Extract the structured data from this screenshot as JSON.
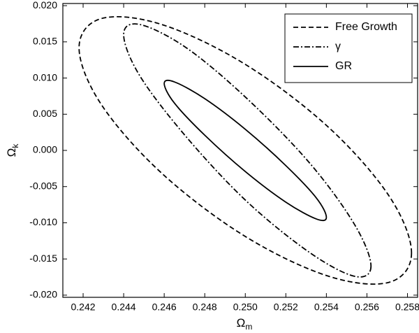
{
  "chart_data": {
    "type": "line",
    "x_label": "Ω",
    "x_label_sub": "m",
    "y_label": "Ω",
    "y_label_sub": "k",
    "xlim": [
      0.241,
      0.2585
    ],
    "xticks": [
      0.242,
      0.244,
      0.246,
      0.248,
      {
        "value": 0.25,
        "label": "0.250"
      },
      0.252,
      0.254,
      0.256,
      0.258
    ],
    "ylim": [
      -0.0203,
      0.0203
    ],
    "yticks": [
      {
        "value": -0.02,
        "label": "-0.020"
      },
      -0.015,
      {
        "value": -0.01,
        "label": "-0.010"
      },
      -0.005,
      {
        "value": 0,
        "label": "0.000"
      },
      0.005,
      {
        "value": 0.01,
        "label": "0.010"
      },
      0.015,
      {
        "value": 0.02,
        "label": "0.020"
      }
    ],
    "legend": "top-right",
    "series": [
      {
        "name": "Free Growth",
        "color": "#000000",
        "style": "dashed",
        "x": [
          0.2582,
          0.2571,
          0.2541,
          0.25,
          0.2459,
          0.2429,
          0.2418,
          0.2429,
          0.2459,
          0.25,
          0.2541,
          0.2571
        ],
        "values": [
          -0.01417,
          -0.01822,
          -0.01738,
          -0.01189,
          -0.00321,
          0.00633,
          0.01417,
          0.01822,
          0.01738,
          0.01189,
          0.00321,
          -0.00633
        ]
      },
      {
        "name": "γ",
        "color": "#000000",
        "style": "dashdot",
        "x": [
          0.2562,
          0.2554,
          0.2532,
          0.2501,
          0.2471,
          0.2448,
          0.244,
          0.2448,
          0.2471,
          0.2501,
          0.2532,
          0.2554
        ],
        "values": [
          -0.01599,
          -0.0174,
          -0.01416,
          -0.00712,
          0.00183,
          0.01029,
          0.01599,
          0.0174,
          0.01416,
          0.00712,
          -0.00183,
          -0.01029
        ]
      },
      {
        "name": "GR",
        "color": "#000000",
        "style": "solid",
        "x": [
          0.254,
          0.2535,
          0.252,
          0.25,
          0.248,
          0.2465,
          0.246,
          0.2465,
          0.248,
          0.25,
          0.252,
          0.2535
        ],
        "values": [
          -0.00925,
          -0.00947,
          -0.00715,
          -0.00292,
          0.0021,
          0.00655,
          0.00925,
          0.00947,
          0.00715,
          0.00292,
          -0.0021,
          -0.00655
        ]
      }
    ]
  }
}
